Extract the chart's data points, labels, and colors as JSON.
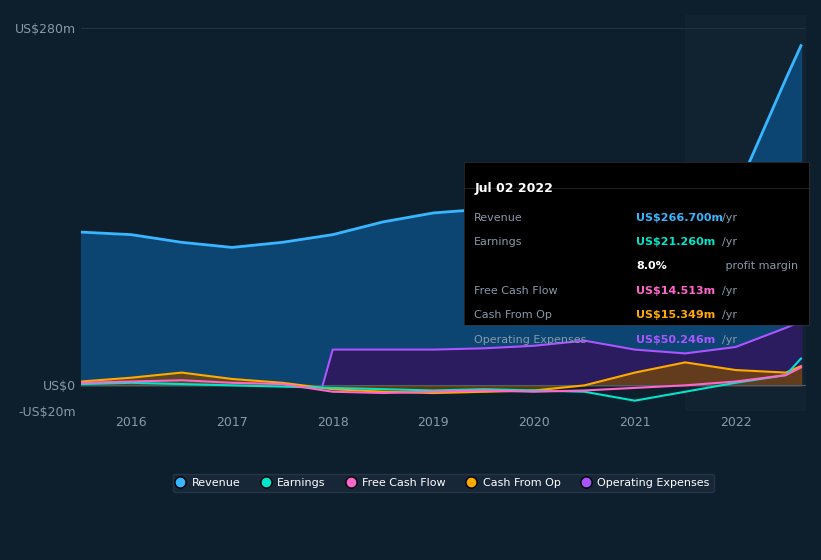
{
  "bg_color": "#0d1f2d",
  "plot_bg_color": "#0d1f2d",
  "highlight_bg": "#162535",
  "title_date": "Jul 02 2022",
  "tooltip": {
    "Revenue": {
      "value": "US$266.700m /yr",
      "color": "#38b6ff"
    },
    "Earnings": {
      "value": "US$21.260m /yr",
      "color": "#00e5cc"
    },
    "profit_margin": "8.0% profit margin",
    "Free Cash Flow": {
      "value": "US$14.513m /yr",
      "color": "#ff66cc"
    },
    "Cash From Op": {
      "value": "US$15.349m /yr",
      "color": "#ffaa00"
    },
    "Operating Expenses": {
      "value": "US$50.246m /yr",
      "color": "#aa55ff"
    }
  },
  "ylim": [
    -20,
    290
  ],
  "yticks": [
    -20,
    0,
    280
  ],
  "ytick_labels": [
    "-US$20m",
    "US$0",
    "US$280m"
  ],
  "xlim_start": 2015.5,
  "xlim_end": 2022.7,
  "xticks": [
    2016,
    2017,
    2018,
    2019,
    2020,
    2021,
    2022
  ],
  "grid_color": "#1e3547",
  "highlight_x_start": 2021.5,
  "series": {
    "Revenue": {
      "color": "#38b6ff",
      "fill_color": "#0d4a7a",
      "x": [
        2015.5,
        2016.0,
        2016.5,
        2017.0,
        2017.5,
        2018.0,
        2018.5,
        2019.0,
        2019.5,
        2020.0,
        2020.5,
        2021.0,
        2021.5,
        2022.0,
        2022.5,
        2022.65
      ],
      "y": [
        120,
        118,
        112,
        108,
        112,
        118,
        128,
        135,
        138,
        132,
        110,
        95,
        110,
        150,
        240,
        266
      ]
    },
    "Earnings": {
      "color": "#00e5cc",
      "x": [
        2015.5,
        2016.0,
        2016.5,
        2017.0,
        2017.5,
        2018.0,
        2018.5,
        2019.0,
        2019.5,
        2020.0,
        2020.5,
        2021.0,
        2021.5,
        2022.0,
        2022.5,
        2022.65
      ],
      "y": [
        1,
        2,
        1,
        0,
        -1,
        -2,
        -3,
        -4,
        -3,
        -4,
        -5,
        -12,
        -5,
        2,
        8,
        21
      ]
    },
    "FreeCashFlow": {
      "color": "#ff66cc",
      "x": [
        2015.5,
        2016.0,
        2016.5,
        2017.0,
        2017.5,
        2018.0,
        2018.5,
        2019.0,
        2019.5,
        2020.0,
        2020.5,
        2021.0,
        2021.5,
        2022.0,
        2022.5,
        2022.65
      ],
      "y": [
        2,
        3,
        4,
        2,
        1,
        -5,
        -6,
        -5,
        -4,
        -5,
        -4,
        -2,
        0,
        3,
        8,
        14
      ]
    },
    "CashFromOp": {
      "color": "#ffaa00",
      "fill_color": "#7a4a00",
      "x": [
        2015.5,
        2016.0,
        2016.5,
        2017.0,
        2017.5,
        2018.0,
        2018.5,
        2019.0,
        2019.5,
        2020.0,
        2020.5,
        2021.0,
        2021.5,
        2022.0,
        2022.5,
        2022.65
      ],
      "y": [
        3,
        6,
        10,
        5,
        2,
        -3,
        -5,
        -6,
        -5,
        -4,
        0,
        10,
        18,
        12,
        10,
        15
      ]
    },
    "OperatingExpenses": {
      "color": "#aa55ff",
      "fill_color": "#2d1a5e",
      "x": [
        2017.9,
        2018.0,
        2018.5,
        2019.0,
        2019.5,
        2020.0,
        2020.5,
        2021.0,
        2021.5,
        2022.0,
        2022.5,
        2022.65
      ],
      "y": [
        0,
        28,
        28,
        28,
        29,
        31,
        35,
        28,
        25,
        30,
        45,
        50
      ]
    }
  },
  "legend": [
    {
      "label": "Revenue",
      "color": "#38b6ff"
    },
    {
      "label": "Earnings",
      "color": "#00e5cc"
    },
    {
      "label": "Free Cash Flow",
      "color": "#ff66cc"
    },
    {
      "label": "Cash From Op",
      "color": "#ffaa00"
    },
    {
      "label": "Operating Expenses",
      "color": "#aa55ff"
    }
  ]
}
